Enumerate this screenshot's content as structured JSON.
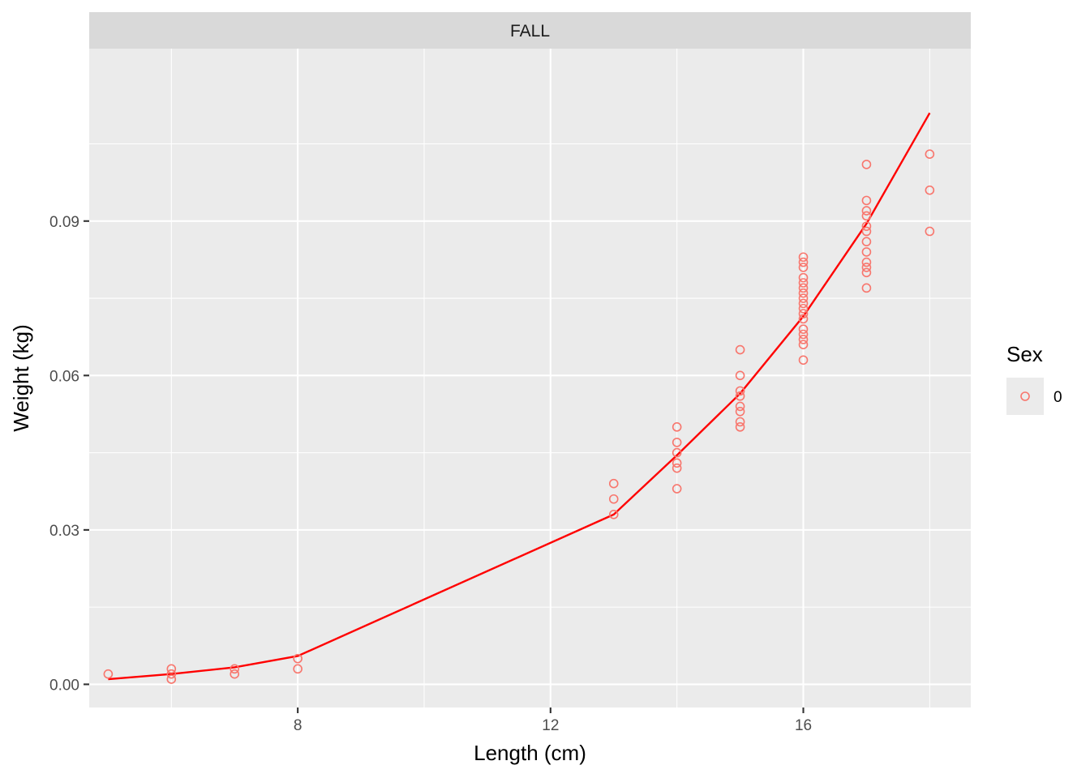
{
  "chart_data": {
    "type": "scatter",
    "facet_label": "FALL",
    "xlabel": "Length (cm)",
    "ylabel": "Weight (kg)",
    "xlim": [
      4.7,
      18.65
    ],
    "ylim": [
      -0.0045,
      0.1235
    ],
    "x_ticks": [
      8,
      12,
      16
    ],
    "x_tick_labels": [
      "8",
      "12",
      "16"
    ],
    "x_minor": [
      6,
      10,
      14,
      18
    ],
    "y_ticks": [
      0.0,
      0.03,
      0.06,
      0.09
    ],
    "y_tick_labels": [
      "0.00",
      "0.03",
      "0.06",
      "0.09"
    ],
    "y_minor": [
      0.015,
      0.045,
      0.075,
      0.105
    ],
    "grid": true,
    "legend": {
      "title": "Sex",
      "entries": [
        "0"
      ],
      "placement": "right"
    },
    "series": [
      {
        "name": "0",
        "kind": "points",
        "color": "#f8766d",
        "points": [
          [
            5,
            0.002
          ],
          [
            6,
            0.003
          ],
          [
            6,
            0.002
          ],
          [
            6,
            0.001
          ],
          [
            7,
            0.003
          ],
          [
            7,
            0.002
          ],
          [
            8,
            0.005
          ],
          [
            8,
            0.003
          ],
          [
            13,
            0.039
          ],
          [
            13,
            0.036
          ],
          [
            13,
            0.033
          ],
          [
            14,
            0.05
          ],
          [
            14,
            0.047
          ],
          [
            14,
            0.045
          ],
          [
            14,
            0.043
          ],
          [
            14,
            0.042
          ],
          [
            14,
            0.038
          ],
          [
            15,
            0.065
          ],
          [
            15,
            0.06
          ],
          [
            15,
            0.057
          ],
          [
            15,
            0.056
          ],
          [
            15,
            0.054
          ],
          [
            15,
            0.053
          ],
          [
            15,
            0.051
          ],
          [
            15,
            0.05
          ],
          [
            16,
            0.083
          ],
          [
            16,
            0.082
          ],
          [
            16,
            0.081
          ],
          [
            16,
            0.079
          ],
          [
            16,
            0.078
          ],
          [
            16,
            0.077
          ],
          [
            16,
            0.076
          ],
          [
            16,
            0.075
          ],
          [
            16,
            0.074
          ],
          [
            16,
            0.073
          ],
          [
            16,
            0.072
          ],
          [
            16,
            0.071
          ],
          [
            16,
            0.069
          ],
          [
            16,
            0.068
          ],
          [
            16,
            0.067
          ],
          [
            16,
            0.066
          ],
          [
            16,
            0.063
          ],
          [
            17,
            0.101
          ],
          [
            17,
            0.094
          ],
          [
            17,
            0.092
          ],
          [
            17,
            0.091
          ],
          [
            17,
            0.089
          ],
          [
            17,
            0.088
          ],
          [
            17,
            0.086
          ],
          [
            17,
            0.084
          ],
          [
            17,
            0.082
          ],
          [
            17,
            0.081
          ],
          [
            17,
            0.08
          ],
          [
            17,
            0.077
          ],
          [
            18,
            0.103
          ],
          [
            18,
            0.096
          ],
          [
            18,
            0.088
          ]
        ]
      },
      {
        "kind": "line",
        "color": "#ff0000",
        "points": [
          [
            5,
            0.001
          ],
          [
            6,
            0.002
          ],
          [
            7,
            0.0033
          ],
          [
            8,
            0.0055
          ],
          [
            13,
            0.033
          ],
          [
            14,
            0.0445
          ],
          [
            15,
            0.0565
          ],
          [
            16,
            0.0715
          ],
          [
            17,
            0.0895
          ],
          [
            18,
            0.111
          ]
        ]
      }
    ]
  }
}
